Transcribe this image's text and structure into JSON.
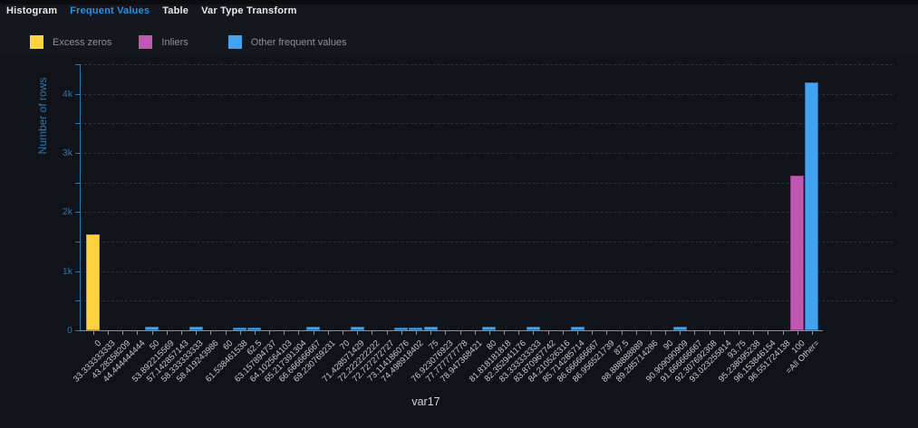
{
  "colors": {
    "accent_tab": "#2293e6",
    "axis_blue": "#2e78ae"
  },
  "tabs": [
    {
      "label": "Histogram",
      "active": false
    },
    {
      "label": "Frequent Values",
      "active": true
    },
    {
      "label": "Table",
      "active": false
    },
    {
      "label": "Var Type Transform",
      "active": false
    }
  ],
  "legend": [
    {
      "label": "Excess zeros",
      "color": "#fdd23c"
    },
    {
      "label": "Inliers",
      "color": "#c058b2"
    },
    {
      "label": "Other frequent values",
      "color": "#42a4ef"
    }
  ],
  "chart_data": {
    "type": "bar",
    "title": "",
    "xlabel": "var17",
    "ylabel": "Number of rows",
    "ylim": [
      0,
      4500
    ],
    "ytick_labels": [
      "0",
      "1k",
      "2k",
      "3k",
      "4k"
    ],
    "grid": "horizontal-dashed",
    "legend_position": "top-left",
    "categories": [
      "0",
      "33.333333333",
      "43.28358209",
      "44.444444444",
      "50",
      "53.892215569",
      "57.142857143",
      "58.333333333",
      "58.419243986",
      "60",
      "61.538461538",
      "62.5",
      "63.157894737",
      "64.102564103",
      "65.217391304",
      "66.666666667",
      "69.230769231",
      "70",
      "71.428571429",
      "72.222222222",
      "72.727272727",
      "73.114186076",
      "74.498918402",
      "75",
      "76.923076923",
      "77.777777778",
      "78.947368421",
      "80",
      "81.818181818",
      "82.352941176",
      "83.333333333",
      "83.870967742",
      "84.210526316",
      "85.714285714",
      "86.666666667",
      "86.956521739",
      "87.5",
      "88.888888889",
      "89.285714286",
      "90",
      "90.909090909",
      "91.666666667",
      "92.307692308",
      "93.023255814",
      "93.75",
      "95.238095238",
      "96.153846154",
      "96.551724138",
      "100",
      "=All Other="
    ],
    "series": [
      {
        "name": "Excess zeros",
        "color": "#fdd23c",
        "line_color": "#caa32c",
        "points": [
          {
            "x": "0",
            "y": 1620
          }
        ]
      },
      {
        "name": "Inliers",
        "color": "#c058b2",
        "line_color": "#8e3f85",
        "points": [
          {
            "x": "100",
            "y": 2610
          }
        ]
      },
      {
        "name": "Other frequent values",
        "color": "#42a4ef",
        "line_color": "#2472ab",
        "points": [
          {
            "x": "50",
            "y": 55
          },
          {
            "x": "58.333333333",
            "y": 55
          },
          {
            "x": "61.538461538",
            "y": 50
          },
          {
            "x": "62.5",
            "y": 50
          },
          {
            "x": "66.666666667",
            "y": 60
          },
          {
            "x": "71.428571429",
            "y": 55
          },
          {
            "x": "73.114186076",
            "y": 50
          },
          {
            "x": "74.498918402",
            "y": 50
          },
          {
            "x": "75",
            "y": 55
          },
          {
            "x": "80",
            "y": 65
          },
          {
            "x": "83.333333333",
            "y": 55
          },
          {
            "x": "85.714285714",
            "y": 55
          },
          {
            "x": "90.909090909",
            "y": 60
          },
          {
            "x": "=All Other=",
            "y": 4190
          }
        ]
      }
    ]
  }
}
